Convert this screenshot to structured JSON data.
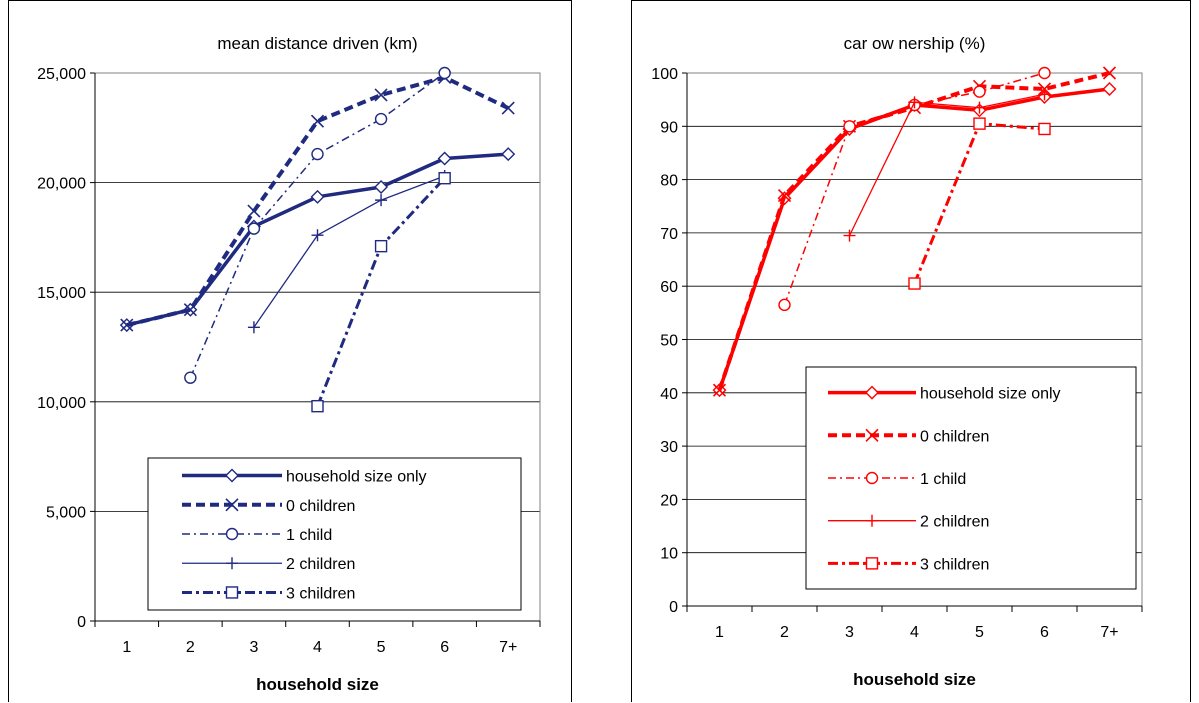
{
  "chart_data": [
    {
      "type": "line",
      "title": "mean distance driven (km)",
      "xlabel": "household size",
      "ylabel": "",
      "categories": [
        "1",
        "2",
        "3",
        "4",
        "5",
        "6",
        "7+"
      ],
      "ylim": [
        0,
        25000
      ],
      "yticks": [
        "0",
        "5,000",
        "10,000",
        "15,000",
        "20,000",
        "25,000"
      ],
      "grid": true,
      "legend_position": "bottom-right",
      "color": "#1f2a80",
      "series": [
        {
          "name": "household size only",
          "marker": "diamond",
          "line": "solid-thick",
          "points": [
            [
              1.0,
              13500
            ],
            [
              2.0,
              14200
            ],
            [
              3.0,
              18000
            ],
            [
              4.0,
              19350
            ],
            [
              5.0,
              19800
            ],
            [
              6.0,
              21100
            ],
            [
              7.0,
              21300
            ]
          ]
        },
        {
          "name": "0 children",
          "marker": "x",
          "line": "dash-thick",
          "points": [
            [
              1.0,
              13500
            ],
            [
              2.0,
              14200
            ],
            [
              3.0,
              18700
            ],
            [
              4.0,
              22800
            ],
            [
              5.0,
              24000
            ],
            [
              6.0,
              24800
            ],
            [
              7.0,
              23400
            ]
          ]
        },
        {
          "name": "1 child",
          "marker": "circle",
          "line": "dashdot",
          "points": [
            [
              2.0,
              11100
            ],
            [
              3.0,
              17900
            ],
            [
              4.0,
              21300
            ],
            [
              5.0,
              22900
            ],
            [
              6.0,
              25000
            ]
          ]
        },
        {
          "name": "2 children",
          "marker": "plus",
          "line": "solid-thin",
          "points": [
            [
              3.0,
              13400
            ],
            [
              4.0,
              17600
            ],
            [
              5.0,
              19200
            ],
            [
              6.0,
              20300
            ]
          ]
        },
        {
          "name": "3 children",
          "marker": "square",
          "line": "dashdot-thick",
          "points": [
            [
              4.0,
              9800
            ],
            [
              5.0,
              17100
            ],
            [
              6.0,
              20200
            ]
          ]
        }
      ]
    },
    {
      "type": "line",
      "title": "car ow nership (%)",
      "xlabel": "household size",
      "ylabel": "",
      "categories": [
        "1",
        "2",
        "3",
        "4",
        "5",
        "6",
        "7+"
      ],
      "ylim": [
        0,
        100
      ],
      "yticks": [
        "0",
        "10",
        "20",
        "30",
        "40",
        "50",
        "60",
        "70",
        "80",
        "90",
        "100"
      ],
      "grid": true,
      "legend_position": "bottom-right",
      "color": "#ff0000",
      "series": [
        {
          "name": "household size only",
          "marker": "diamond",
          "line": "solid-thick",
          "points": [
            [
              1.0,
              40.5
            ],
            [
              2.0,
              76.5
            ],
            [
              3.0,
              89.5
            ],
            [
              4.0,
              94.0
            ],
            [
              5.0,
              93.0
            ],
            [
              6.0,
              95.5
            ],
            [
              7.0,
              97.0
            ]
          ]
        },
        {
          "name": "0 children",
          "marker": "x",
          "line": "dash-thick",
          "points": [
            [
              1.0,
              40.5
            ],
            [
              2.0,
              77.0
            ],
            [
              3.0,
              90.0
            ],
            [
              4.0,
              93.5
            ],
            [
              5.0,
              97.5
            ],
            [
              6.0,
              97.0
            ],
            [
              7.0,
              100.0
            ]
          ]
        },
        {
          "name": "1 child",
          "marker": "circle",
          "line": "dashdot",
          "points": [
            [
              2.0,
              56.5
            ],
            [
              3.0,
              90.0
            ],
            [
              4.0,
              94.0
            ],
            [
              5.0,
              96.5
            ],
            [
              6.0,
              100.0
            ]
          ]
        },
        {
          "name": "2 children",
          "marker": "plus",
          "line": "solid-thin",
          "points": [
            [
              3.0,
              69.5
            ],
            [
              4.0,
              94.5
            ],
            [
              5.0,
              93.5
            ],
            [
              6.0,
              96.0
            ]
          ]
        },
        {
          "name": "3 children",
          "marker": "square",
          "line": "dashdot-thick",
          "points": [
            [
              4.0,
              60.5
            ],
            [
              5.0,
              90.5
            ],
            [
              6.0,
              89.5
            ]
          ]
        }
      ]
    }
  ]
}
